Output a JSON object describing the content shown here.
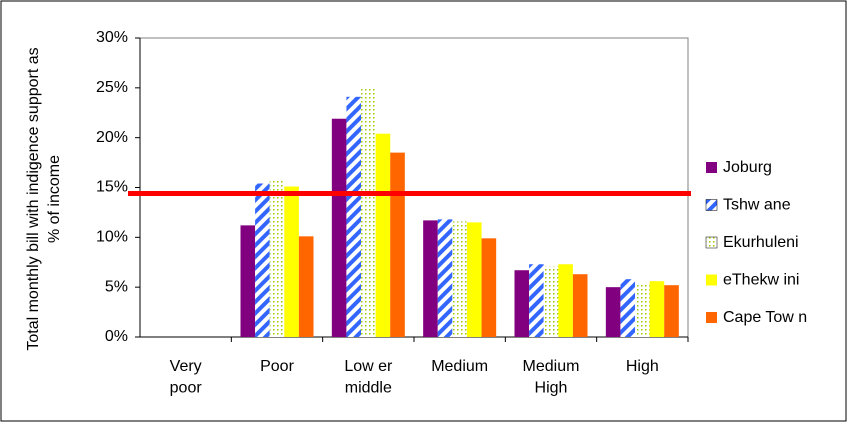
{
  "chart_data": {
    "type": "bar",
    "y_label": [
      "Total monthly bill with indigence support as",
      "% of income"
    ],
    "categories": [
      "Very\npoor",
      "Poor",
      "Low er\nmiddle",
      "Medium",
      "Medium\nHigh",
      "High"
    ],
    "series": [
      {
        "name": "Joburg",
        "color": "#800080",
        "pattern": "solid",
        "values": [
          null,
          11.2,
          21.9,
          11.7,
          6.7,
          5.0
        ]
      },
      {
        "name": "Tshw ane",
        "color": "#3366ff",
        "pattern": "stripes",
        "values": [
          null,
          15.4,
          24.1,
          11.8,
          7.3,
          5.8
        ]
      },
      {
        "name": "Ekurhuleni",
        "color": "#99cc00",
        "pattern": "dots",
        "values": [
          null,
          15.7,
          25.1,
          11.6,
          7.1,
          5.4
        ]
      },
      {
        "name": "eThekw ini",
        "color": "#ffff00",
        "pattern": "solid",
        "values": [
          null,
          15.1,
          20.4,
          11.5,
          7.3,
          5.6
        ]
      },
      {
        "name": "Cape Tow n",
        "color": "#ff6600",
        "pattern": "solid",
        "values": [
          null,
          10.1,
          18.5,
          9.9,
          6.3,
          5.2
        ]
      }
    ],
    "threshold": 14.4,
    "threshold_color": "#ff0000",
    "ylim": [
      0,
      30
    ],
    "yticks": [
      {
        "value": 0,
        "label": "0%"
      },
      {
        "value": 5,
        "label": "5%"
      },
      {
        "value": 10,
        "label": "10%"
      },
      {
        "value": 15,
        "label": "15%"
      },
      {
        "value": 20,
        "label": "20%"
      },
      {
        "value": 25,
        "label": "25%"
      },
      {
        "value": 30,
        "label": "30%"
      }
    ],
    "grid": false,
    "legend": "right"
  }
}
